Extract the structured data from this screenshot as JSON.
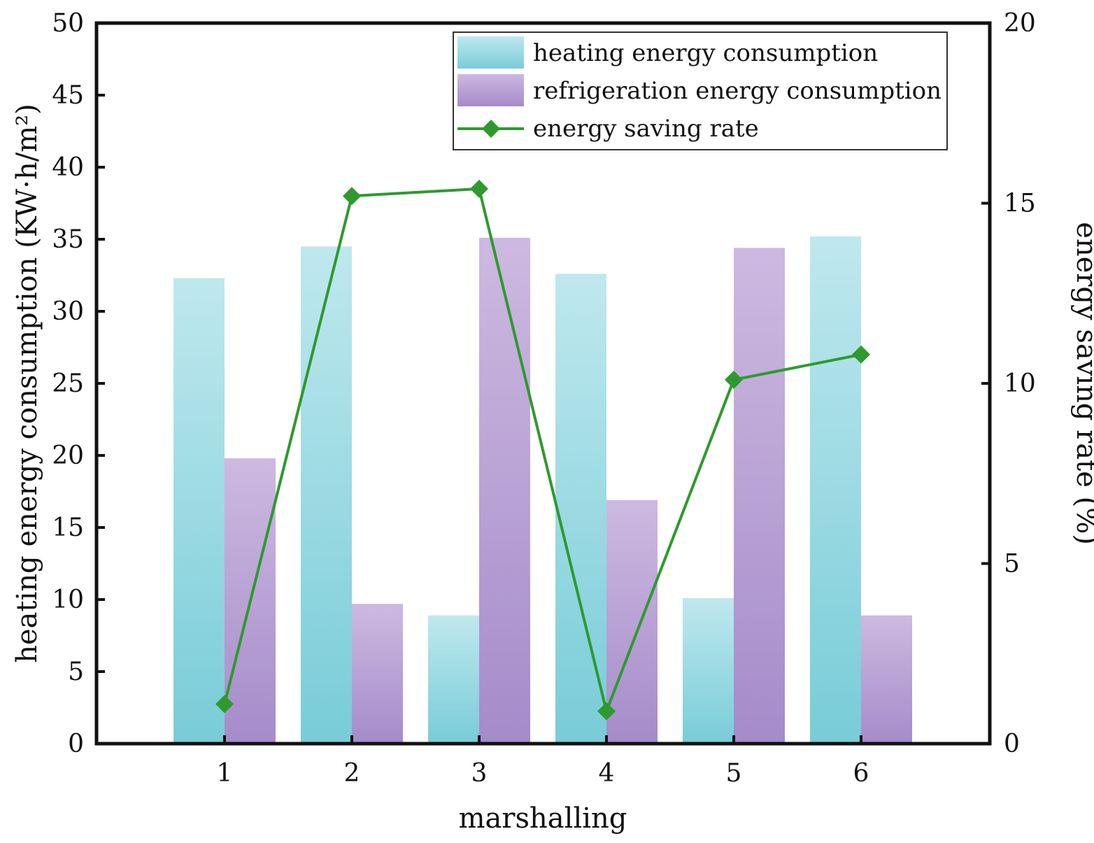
{
  "chart_data": {
    "type": "bar",
    "categories": [
      "1",
      "2",
      "3",
      "4",
      "5",
      "6"
    ],
    "series": [
      {
        "name": "heating energy consumption",
        "axis": "left",
        "kind": "bar",
        "color": "#86d3dd",
        "values": [
          32.3,
          34.5,
          8.9,
          32.6,
          10.1,
          35.2
        ]
      },
      {
        "name": "refrigeration energy consumption",
        "axis": "left",
        "kind": "bar",
        "color": "#b39bd0",
        "values": [
          19.8,
          9.7,
          35.1,
          16.9,
          34.4,
          8.9
        ]
      },
      {
        "name": "energy saving rate",
        "axis": "right",
        "kind": "line",
        "marker": "diamond",
        "color": "#2e9a2e",
        "values": [
          1.1,
          15.2,
          15.4,
          0.9,
          10.1,
          10.8
        ]
      }
    ],
    "xlabel": "marshalling",
    "ylabel": "heating energy consumption (KW·h/m²)",
    "y2label": "energy saving rate (%)",
    "ylim": [
      0,
      50
    ],
    "y2lim": [
      0,
      20
    ],
    "yticks": [
      "0",
      "5",
      "10",
      "15",
      "20",
      "25",
      "30",
      "35",
      "40",
      "45",
      "50"
    ],
    "y2ticks": [
      "0",
      "5",
      "10",
      "15",
      "20"
    ],
    "legend_position": "top-right",
    "grid": false
  }
}
